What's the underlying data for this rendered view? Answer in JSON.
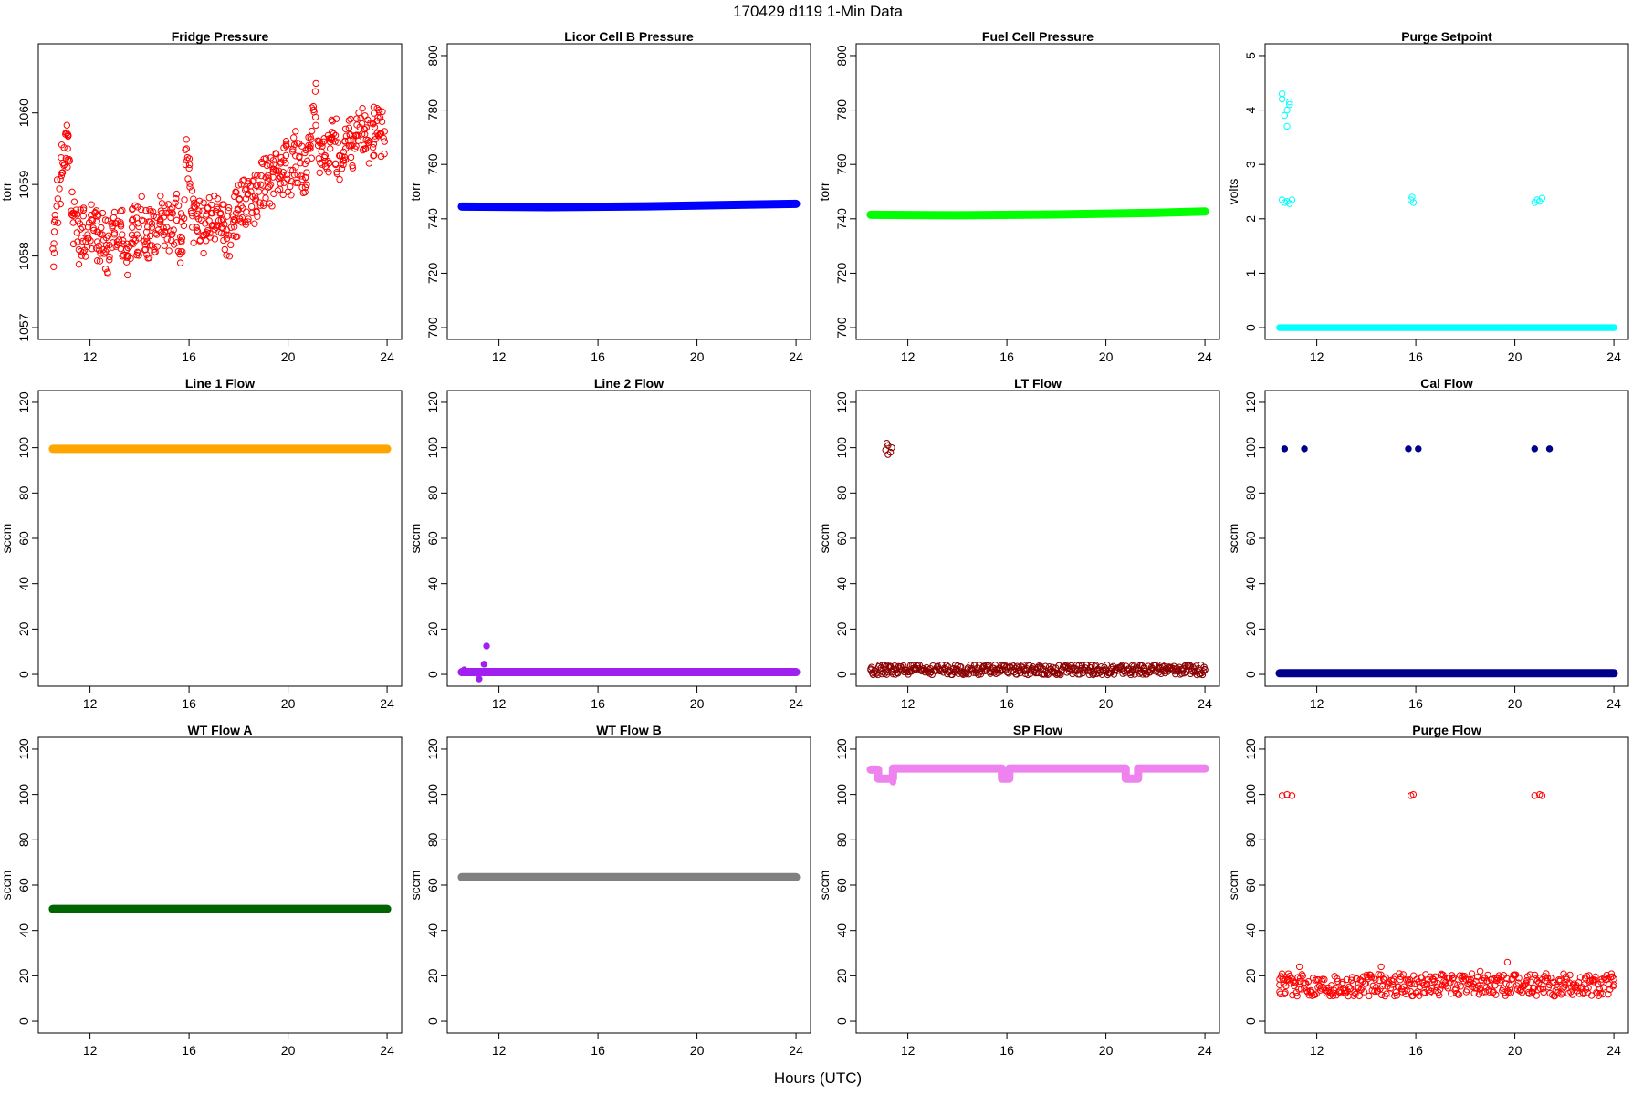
{
  "figure": {
    "title": "170429   d119   1-Min Data",
    "xlabel": "Hours (UTC)"
  },
  "chart_data": [
    {
      "type": "scatter",
      "title": "Fridge Pressure",
      "ylabel": "torr",
      "color": "#ff0000",
      "marker": "open-circle",
      "xlim": [
        10.5,
        24
      ],
      "ylim": [
        1057,
        1060.8
      ],
      "xticks": [
        12,
        16,
        20,
        24
      ],
      "yticks": [
        1057,
        1058,
        1059,
        1060
      ],
      "series": [
        {
          "x": [
            10.5,
            10.7,
            10.9,
            11.1,
            11.3,
            11.5,
            11.7,
            11.9,
            12.1,
            12.3,
            12.5,
            12.7,
            12.9,
            13.1,
            13.3,
            13.5,
            13.7,
            13.9,
            14.1,
            14.3,
            14.5,
            14.7,
            14.9,
            15.1,
            15.3,
            15.5,
            15.7,
            15.9,
            16.1,
            16.3,
            16.5,
            16.7,
            16.9,
            17.1,
            17.3,
            17.5,
            17.7,
            17.9,
            18.1,
            18.3,
            18.5,
            18.7,
            18.9,
            19.1,
            19.3,
            19.5,
            19.7,
            19.9,
            20.1,
            20.3,
            20.5,
            20.7,
            20.9,
            21.1,
            21.3,
            21.5,
            21.7,
            21.9,
            22.1,
            22.3,
            22.5,
            22.7,
            22.9,
            23.1,
            23.3,
            23.5,
            23.7,
            23.9
          ],
          "y": [
            1058.1,
            1058.8,
            1059.3,
            1059.5,
            1058.6,
            1058.2,
            1058.4,
            1058.3,
            1058.5,
            1058.2,
            1058.3,
            1058.1,
            1058.4,
            1058.2,
            1058.3,
            1058.0,
            1058.4,
            1058.3,
            1058.5,
            1058.2,
            1058.4,
            1058.3,
            1058.6,
            1058.4,
            1058.3,
            1058.5,
            1058.2,
            1059.5,
            1058.6,
            1058.4,
            1058.5,
            1058.3,
            1058.6,
            1058.4,
            1058.5,
            1058.3,
            1058.4,
            1058.6,
            1058.7,
            1058.8,
            1058.9,
            1058.8,
            1059.0,
            1059.1,
            1059.0,
            1059.2,
            1059.1,
            1059.3,
            1059.2,
            1059.4,
            1059.3,
            1059.1,
            1059.5,
            1060.3,
            1059.3,
            1059.4,
            1059.5,
            1059.6,
            1059.4,
            1059.6,
            1059.7,
            1059.5,
            1059.8,
            1059.7,
            1059.6,
            1059.8,
            1059.7,
            1059.6
          ]
        }
      ]
    },
    {
      "type": "scatter",
      "title": "Licor Cell B Pressure",
      "ylabel": "torr",
      "color": "#0000ff",
      "marker": "filled-band",
      "xlim": [
        10.5,
        24
      ],
      "ylim": [
        700,
        800
      ],
      "xticks": [
        12,
        16,
        20,
        24
      ],
      "yticks": [
        700,
        720,
        740,
        760,
        780,
        800
      ],
      "series": [
        {
          "x": [
            10.5,
            14,
            18,
            22,
            24
          ],
          "y": [
            744.5,
            744.3,
            744.6,
            745.2,
            745.5
          ]
        }
      ]
    },
    {
      "type": "scatter",
      "title": "Fuel Cell Pressure",
      "ylabel": "torr",
      "color": "#00ff00",
      "marker": "filled-band",
      "xlim": [
        10.5,
        24
      ],
      "ylim": [
        700,
        800
      ],
      "xticks": [
        12,
        16,
        20,
        24
      ],
      "yticks": [
        700,
        720,
        740,
        760,
        780,
        800
      ],
      "series": [
        {
          "x": [
            10.5,
            14,
            18,
            22,
            24
          ],
          "y": [
            741.5,
            741.3,
            741.6,
            742.2,
            742.7
          ]
        }
      ]
    },
    {
      "type": "scatter",
      "title": "Purge Setpoint",
      "ylabel": "volts",
      "color": "#00ffff",
      "marker": "open-circle",
      "xlim": [
        10.5,
        24
      ],
      "ylim": [
        0,
        5
      ],
      "xticks": [
        12,
        16,
        20,
        24
      ],
      "yticks": [
        0,
        1,
        2,
        3,
        4,
        5
      ],
      "series": [
        {
          "x": [
            10.5,
            24
          ],
          "y": [
            0,
            0
          ]
        },
        {
          "x": [
            10.6,
            10.6,
            10.7,
            10.8,
            10.8,
            10.9,
            10.9,
            10.6,
            10.7,
            10.8,
            10.9,
            11.0,
            15.8,
            15.9,
            15.85,
            20.8,
            20.9,
            21.0,
            21.1
          ],
          "y": [
            4.3,
            4.2,
            3.9,
            3.7,
            4.0,
            4.1,
            4.15,
            2.35,
            2.3,
            2.32,
            2.28,
            2.35,
            2.35,
            2.3,
            2.4,
            2.3,
            2.35,
            2.32,
            2.38
          ]
        }
      ]
    },
    {
      "type": "scatter",
      "title": "Line 1 Flow",
      "ylabel": "sccm",
      "color": "#ffa500",
      "marker": "filled-band",
      "xlim": [
        10.5,
        24
      ],
      "ylim": [
        0,
        120
      ],
      "xticks": [
        12,
        16,
        20,
        24
      ],
      "yticks": [
        0,
        20,
        40,
        60,
        80,
        100,
        120
      ],
      "series": [
        {
          "x": [
            10.5,
            24
          ],
          "y": [
            99.5,
            99.5
          ]
        }
      ]
    },
    {
      "type": "scatter",
      "title": "Line 2 Flow",
      "ylabel": "sccm",
      "color": "#a020f0",
      "marker": "filled-band",
      "xlim": [
        10.5,
        24
      ],
      "ylim": [
        0,
        120
      ],
      "xticks": [
        12,
        16,
        20,
        24
      ],
      "yticks": [
        0,
        20,
        40,
        60,
        80,
        100,
        120
      ],
      "series": [
        {
          "x": [
            10.5,
            24
          ],
          "y": [
            1.0,
            1.0
          ]
        },
        {
          "x": [
            10.6,
            11.2,
            11.4,
            11.5
          ],
          "y": [
            2,
            -2,
            4.5,
            12.5
          ]
        }
      ]
    },
    {
      "type": "scatter",
      "title": "LT Flow",
      "ylabel": "sccm",
      "color": "#8b0000",
      "marker": "open-circle",
      "xlim": [
        10.5,
        24
      ],
      "ylim": [
        0,
        120
      ],
      "xticks": [
        12,
        16,
        20,
        24
      ],
      "yticks": [
        0,
        20,
        40,
        60,
        80,
        100,
        120
      ],
      "series": [
        {
          "x": [
            10.5,
            24
          ],
          "y": [
            2,
            2
          ]
        },
        {
          "x": [
            11.1,
            11.2,
            11.3,
            11.2,
            11.35,
            11.15
          ],
          "y": [
            99,
            101,
            98,
            97,
            100,
            102
          ]
        }
      ]
    },
    {
      "type": "scatter",
      "title": "Cal Flow",
      "ylabel": "sccm",
      "color": "#00008b",
      "marker": "filled-band",
      "xlim": [
        10.5,
        24
      ],
      "ylim": [
        0,
        120
      ],
      "xticks": [
        12,
        16,
        20,
        24
      ],
      "yticks": [
        0,
        20,
        40,
        60,
        80,
        100,
        120
      ],
      "series": [
        {
          "x": [
            10.5,
            24
          ],
          "y": [
            0.5,
            0.5
          ]
        },
        {
          "x": [
            10.7,
            11.5,
            15.7,
            16.1,
            20.8,
            21.4
          ],
          "y": [
            99.5,
            99.5,
            99.5,
            99.5,
            99.5,
            99.5
          ]
        }
      ]
    },
    {
      "type": "scatter",
      "title": "WT Flow A",
      "ylabel": "sccm",
      "color": "#006400",
      "marker": "filled-band",
      "xlim": [
        10.5,
        24
      ],
      "ylim": [
        0,
        120
      ],
      "xticks": [
        12,
        16,
        20,
        24
      ],
      "yticks": [
        0,
        20,
        40,
        60,
        80,
        100,
        120
      ],
      "series": [
        {
          "x": [
            10.5,
            24
          ],
          "y": [
            49.5,
            49.5
          ]
        }
      ]
    },
    {
      "type": "scatter",
      "title": "WT Flow B",
      "ylabel": "sccm",
      "color": "#808080",
      "marker": "filled-band",
      "xlim": [
        10.5,
        24
      ],
      "ylim": [
        0,
        120
      ],
      "xticks": [
        12,
        16,
        20,
        24
      ],
      "yticks": [
        0,
        20,
        40,
        60,
        80,
        100,
        120
      ],
      "series": [
        {
          "x": [
            10.5,
            24
          ],
          "y": [
            63.5,
            63.5
          ]
        }
      ]
    },
    {
      "type": "scatter",
      "title": "SP Flow",
      "ylabel": "sccm",
      "color": "#ee82ee",
      "marker": "filled-band",
      "xlim": [
        10.5,
        24
      ],
      "ylim": [
        0,
        120
      ],
      "xticks": [
        12,
        16,
        20,
        24
      ],
      "yticks": [
        0,
        20,
        40,
        60,
        80,
        100,
        120
      ],
      "series": [
        {
          "x": [
            10.5,
            10.8,
            10.8,
            11.4,
            11.4,
            15.8,
            15.8,
            16.1,
            16.1,
            20.8,
            20.8,
            21.3,
            21.3,
            24
          ],
          "y": [
            111,
            111,
            107,
            107,
            111.5,
            111.5,
            107,
            107,
            111.5,
            111.5,
            107,
            107,
            111.5,
            111.5
          ]
        },
        {
          "x": [
            11.4
          ],
          "y": [
            105.5
          ]
        }
      ]
    },
    {
      "type": "scatter",
      "title": "Purge Flow",
      "ylabel": "sccm",
      "color": "#ff0000",
      "marker": "open-circle",
      "xlim": [
        10.5,
        24
      ],
      "ylim": [
        0,
        120
      ],
      "xticks": [
        12,
        16,
        20,
        24
      ],
      "yticks": [
        0,
        20,
        40,
        60,
        80,
        100,
        120
      ],
      "series": [
        {
          "x": [
            10.5,
            24
          ],
          "y": [
            16,
            16
          ]
        },
        {
          "x": [
            10.6,
            10.8,
            11.0,
            15.8,
            15.9,
            20.8,
            21.0,
            21.1
          ],
          "y": [
            99.5,
            100,
            99.5,
            99.5,
            100,
            99.5,
            100,
            99.5
          ]
        },
        {
          "x": [
            10.5,
            10.7,
            11.3,
            14.6,
            18.6,
            19.7
          ],
          "y": [
            18.5,
            12,
            24,
            24,
            22,
            26
          ]
        }
      ]
    }
  ]
}
